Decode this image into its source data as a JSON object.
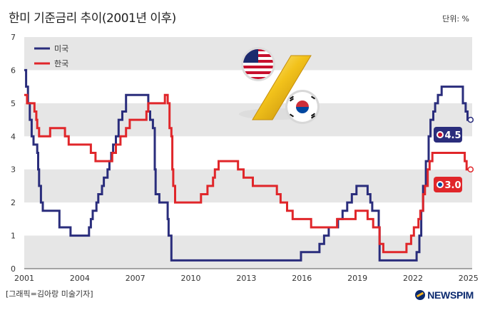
{
  "header": {
    "title": "한미 기준금리 추이(2001년 이후)",
    "unit": "단위: %"
  },
  "footer": {
    "credit": "[그래픽=김아랑 미술기자]",
    "logo": "NEWSPIM"
  },
  "colors": {
    "us": "#2a2d7c",
    "kr": "#e0262a",
    "band": "#e6e6e6"
  },
  "chart_data": {
    "type": "line",
    "title": "한미 기준금리 추이(2001년 이후)",
    "xlim": [
      2001,
      2025.2
    ],
    "ylim": [
      0,
      7
    ],
    "x_ticks": [
      "2001",
      "2004",
      "2007",
      "2010",
      "2013",
      "2016",
      "2019",
      "2022",
      "2025"
    ],
    "y_ticks": [
      "0",
      "1",
      "2",
      "3",
      "4",
      "5",
      "6",
      "7"
    ],
    "grid": "horizontal bands",
    "legend": "top-left",
    "series": [
      {
        "name": "미국",
        "color": "#2a2d7c",
        "end_label": "4.5",
        "points": [
          [
            2001.0,
            6.0
          ],
          [
            2001.1,
            5.5
          ],
          [
            2001.2,
            5.0
          ],
          [
            2001.3,
            4.5
          ],
          [
            2001.4,
            4.0
          ],
          [
            2001.5,
            3.75
          ],
          [
            2001.7,
            3.5
          ],
          [
            2001.75,
            3.0
          ],
          [
            2001.8,
            2.5
          ],
          [
            2001.9,
            2.0
          ],
          [
            2002.0,
            1.75
          ],
          [
            2002.9,
            1.25
          ],
          [
            2003.5,
            1.0
          ],
          [
            2004.5,
            1.25
          ],
          [
            2004.6,
            1.5
          ],
          [
            2004.7,
            1.75
          ],
          [
            2004.9,
            2.0
          ],
          [
            2005.0,
            2.25
          ],
          [
            2005.2,
            2.5
          ],
          [
            2005.3,
            2.75
          ],
          [
            2005.5,
            3.0
          ],
          [
            2005.6,
            3.25
          ],
          [
            2005.7,
            3.5
          ],
          [
            2005.8,
            3.75
          ],
          [
            2005.95,
            4.0
          ],
          [
            2006.1,
            4.5
          ],
          [
            2006.3,
            4.75
          ],
          [
            2006.5,
            5.25
          ],
          [
            2007.7,
            4.75
          ],
          [
            2007.8,
            4.5
          ],
          [
            2007.95,
            4.25
          ],
          [
            2008.05,
            3.0
          ],
          [
            2008.1,
            2.25
          ],
          [
            2008.3,
            2.0
          ],
          [
            2008.75,
            1.5
          ],
          [
            2008.8,
            1.0
          ],
          [
            2008.95,
            0.25
          ],
          [
            2015.95,
            0.5
          ],
          [
            2016.95,
            0.75
          ],
          [
            2017.2,
            1.0
          ],
          [
            2017.45,
            1.25
          ],
          [
            2017.95,
            1.5
          ],
          [
            2018.2,
            1.75
          ],
          [
            2018.45,
            2.0
          ],
          [
            2018.7,
            2.25
          ],
          [
            2018.95,
            2.5
          ],
          [
            2019.55,
            2.25
          ],
          [
            2019.7,
            2.0
          ],
          [
            2019.8,
            1.75
          ],
          [
            2020.15,
            1.25
          ],
          [
            2020.2,
            0.25
          ],
          [
            2022.2,
            0.5
          ],
          [
            2022.35,
            1.0
          ],
          [
            2022.45,
            1.75
          ],
          [
            2022.55,
            2.5
          ],
          [
            2022.7,
            3.25
          ],
          [
            2022.85,
            4.0
          ],
          [
            2022.95,
            4.5
          ],
          [
            2023.1,
            4.75
          ],
          [
            2023.2,
            5.0
          ],
          [
            2023.35,
            5.25
          ],
          [
            2023.55,
            5.5
          ],
          [
            2024.7,
            5.0
          ],
          [
            2024.85,
            4.75
          ],
          [
            2024.95,
            4.5
          ],
          [
            2025.0,
            4.5
          ]
        ]
      },
      {
        "name": "한국",
        "color": "#e0262a",
        "end_label": "3.0",
        "points": [
          [
            2001.0,
            5.25
          ],
          [
            2001.15,
            5.0
          ],
          [
            2001.55,
            4.75
          ],
          [
            2001.65,
            4.5
          ],
          [
            2001.7,
            4.25
          ],
          [
            2001.8,
            4.0
          ],
          [
            2002.4,
            4.25
          ],
          [
            2003.2,
            4.0
          ],
          [
            2003.4,
            3.75
          ],
          [
            2004.6,
            3.5
          ],
          [
            2004.85,
            3.25
          ],
          [
            2005.75,
            3.5
          ],
          [
            2005.95,
            3.75
          ],
          [
            2006.2,
            4.0
          ],
          [
            2006.5,
            4.25
          ],
          [
            2006.7,
            4.5
          ],
          [
            2007.6,
            4.75
          ],
          [
            2007.7,
            5.0
          ],
          [
            2008.6,
            5.25
          ],
          [
            2008.75,
            5.0
          ],
          [
            2008.85,
            4.25
          ],
          [
            2008.95,
            4.0
          ],
          [
            2009.0,
            3.0
          ],
          [
            2009.05,
            2.5
          ],
          [
            2009.15,
            2.0
          ],
          [
            2010.55,
            2.25
          ],
          [
            2010.9,
            2.5
          ],
          [
            2011.2,
            2.75
          ],
          [
            2011.3,
            3.0
          ],
          [
            2011.5,
            3.25
          ],
          [
            2012.55,
            3.0
          ],
          [
            2012.85,
            2.75
          ],
          [
            2013.35,
            2.5
          ],
          [
            2014.65,
            2.25
          ],
          [
            2014.85,
            2.0
          ],
          [
            2015.2,
            1.75
          ],
          [
            2015.5,
            1.5
          ],
          [
            2016.5,
            1.25
          ],
          [
            2017.9,
            1.5
          ],
          [
            2018.9,
            1.75
          ],
          [
            2019.55,
            1.5
          ],
          [
            2019.85,
            1.25
          ],
          [
            2020.2,
            0.75
          ],
          [
            2020.4,
            0.5
          ],
          [
            2021.65,
            0.75
          ],
          [
            2021.9,
            1.0
          ],
          [
            2022.05,
            1.25
          ],
          [
            2022.3,
            1.5
          ],
          [
            2022.4,
            1.75
          ],
          [
            2022.55,
            2.25
          ],
          [
            2022.65,
            2.5
          ],
          [
            2022.8,
            3.0
          ],
          [
            2022.9,
            3.25
          ],
          [
            2023.05,
            3.5
          ],
          [
            2024.8,
            3.25
          ],
          [
            2024.9,
            3.0
          ],
          [
            2025.0,
            3.0
          ]
        ]
      }
    ]
  }
}
